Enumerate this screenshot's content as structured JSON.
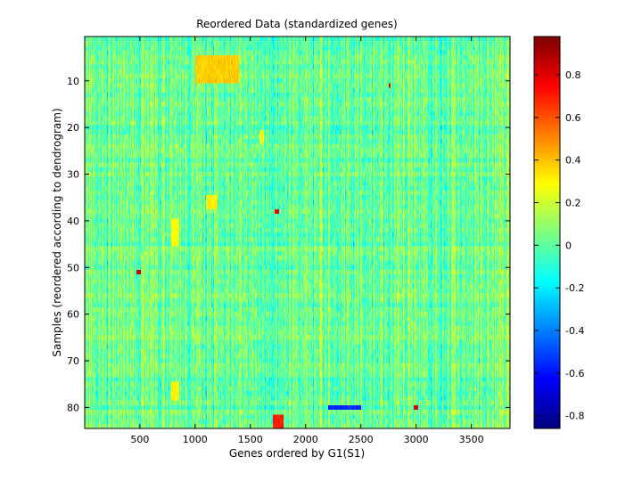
{
  "chart_data": {
    "type": "heatmap",
    "title": "Reordered Data (standardized genes)",
    "xlabel": "Genes ordered by G1(S1)",
    "ylabel": "Samples (reordered according to dendrogram)",
    "xlim": [
      1,
      3850
    ],
    "ylim": [
      1,
      84
    ],
    "y_reversed": true,
    "x_ticks": [
      500,
      1000,
      1500,
      2000,
      2500,
      3000,
      3500
    ],
    "y_ticks": [
      10,
      20,
      30,
      40,
      50,
      60,
      70,
      80
    ],
    "colormap": "jet",
    "clim": [
      -0.86,
      0.98
    ],
    "colorbar_ticks": [
      "0.8",
      "0.6",
      "0.4",
      "0.2",
      "0",
      "-0.2",
      "-0.4",
      "-0.6",
      "-0.8"
    ],
    "value_summary": "Values mostly between -0.3 and 0.3 (cyan-green-yellow), with a warm block near samples 5-10, genes 1000-1400 (~0.3-0.45), scattered red points up to ~0.98 and blue points down to ~-0.8 near sample 80, genes 2200-2500.",
    "highlights": [
      {
        "x": [
          1000,
          1400
        ],
        "y": [
          5,
          10
        ],
        "value": 0.38
      },
      {
        "x": [
          1580,
          1620
        ],
        "y": [
          21,
          23
        ],
        "value": 0.3
      },
      {
        "x": [
          1100,
          1200
        ],
        "y": [
          35,
          37
        ],
        "value": 0.32
      },
      {
        "x": [
          780,
          860
        ],
        "y": [
          40,
          45
        ],
        "value": 0.28
      },
      {
        "x": [
          780,
          860
        ],
        "y": [
          75,
          78
        ],
        "value": 0.3
      },
      {
        "x": [
          470,
          510
        ],
        "y": [
          51,
          51
        ],
        "value": 0.85
      },
      {
        "x": [
          2200,
          2500
        ],
        "y": [
          80,
          80
        ],
        "value": -0.55
      },
      {
        "x": [
          1700,
          1800
        ],
        "y": [
          82,
          84
        ],
        "value": 0.7
      },
      {
        "x": [
          2980,
          3020
        ],
        "y": [
          80,
          80
        ],
        "value": 0.8
      },
      {
        "x": [
          1720,
          1760
        ],
        "y": [
          38,
          38
        ],
        "value": 0.75
      },
      {
        "x": [
          2750,
          2770
        ],
        "y": [
          11,
          11
        ],
        "value": 0.78
      }
    ]
  }
}
